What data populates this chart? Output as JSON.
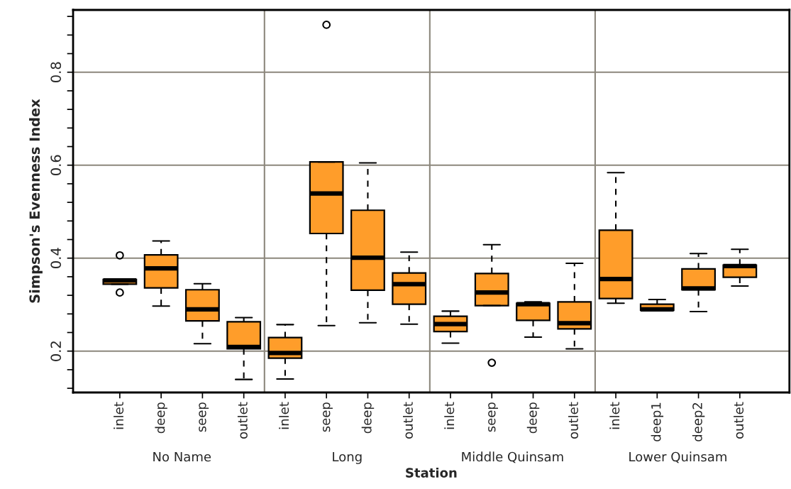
{
  "chart_data": {
    "type": "box",
    "xlabel": "Station",
    "ylabel": "Simpson's Evenness Index",
    "categories": [
      "inlet",
      "deep",
      "seep",
      "outlet",
      "inlet",
      "seep",
      "deep",
      "outlet",
      "inlet",
      "seep",
      "deep",
      "outlet",
      "inlet",
      "deep1",
      "deep2",
      "outlet"
    ],
    "annotations": [
      "No Name",
      "Long",
      "Middle Quinsam",
      "Lower Quinsam"
    ],
    "color": "#ff9d2a",
    "ylim": [
      0.111,
      0.934
    ],
    "yticks": [
      {
        "value": 0.12,
        "label": null
      },
      {
        "value": 0.16,
        "label": null
      },
      {
        "value": 0.2,
        "label": "0.2"
      },
      {
        "value": 0.24,
        "label": null
      },
      {
        "value": 0.28,
        "label": null
      },
      {
        "value": 0.32,
        "label": null
      },
      {
        "value": 0.36,
        "label": null
      },
      {
        "value": 0.4,
        "label": "0.4"
      },
      {
        "value": 0.44,
        "label": null
      },
      {
        "value": 0.48,
        "label": null
      },
      {
        "value": 0.52,
        "label": null
      },
      {
        "value": 0.56,
        "label": null
      },
      {
        "value": 0.6,
        "label": "0.6"
      },
      {
        "value": 0.64,
        "label": null
      },
      {
        "value": 0.68,
        "label": null
      },
      {
        "value": 0.72,
        "label": null
      },
      {
        "value": 0.76,
        "label": null
      },
      {
        "value": 0.8,
        "label": "0.8"
      },
      {
        "value": 0.84,
        "label": null
      },
      {
        "value": 0.88,
        "label": null
      },
      {
        "value": 0.92,
        "label": null
      }
    ],
    "grid": true,
    "boxes": [
      {
        "low": 0.344,
        "q1": 0.344,
        "median": 0.352,
        "q3": 0.354,
        "high": 0.354,
        "outliers": [
          0.406,
          0.326
        ]
      },
      {
        "low": 0.297,
        "q1": 0.336,
        "median": 0.378,
        "q3": 0.407,
        "high": 0.437
      },
      {
        "low": 0.216,
        "q1": 0.265,
        "median": 0.29,
        "q3": 0.332,
        "high": 0.345
      },
      {
        "low": 0.139,
        "q1": 0.205,
        "median": 0.209,
        "q3": 0.263,
        "high": 0.272
      },
      {
        "low": 0.14,
        "q1": 0.185,
        "median": 0.196,
        "q3": 0.229,
        "high": 0.257
      },
      {
        "low": 0.255,
        "q1": 0.453,
        "median": 0.539,
        "q3": 0.607,
        "high": 0.607,
        "outliers": [
          0.902
        ]
      },
      {
        "low": 0.261,
        "q1": 0.331,
        "median": 0.401,
        "q3": 0.503,
        "high": 0.605
      },
      {
        "low": 0.258,
        "q1": 0.301,
        "median": 0.344,
        "q3": 0.368,
        "high": 0.413
      },
      {
        "low": 0.217,
        "q1": 0.242,
        "median": 0.258,
        "q3": 0.275,
        "high": 0.286
      },
      {
        "low": 0.298,
        "q1": 0.298,
        "median": 0.326,
        "q3": 0.367,
        "high": 0.429,
        "outliers": [
          0.175
        ]
      },
      {
        "low": 0.23,
        "q1": 0.266,
        "median": 0.301,
        "q3": 0.303,
        "high": 0.306
      },
      {
        "low": 0.205,
        "q1": 0.248,
        "median": 0.26,
        "q3": 0.306,
        "high": 0.389
      },
      {
        "low": 0.303,
        "q1": 0.313,
        "median": 0.355,
        "q3": 0.46,
        "high": 0.584
      },
      {
        "low": 0.288,
        "q1": 0.288,
        "median": 0.29,
        "q3": 0.301,
        "high": 0.311
      },
      {
        "low": 0.285,
        "q1": 0.332,
        "median": 0.335,
        "q3": 0.377,
        "high": 0.41
      },
      {
        "low": 0.34,
        "q1": 0.359,
        "median": 0.383,
        "q3": 0.385,
        "high": 0.419
      }
    ]
  }
}
